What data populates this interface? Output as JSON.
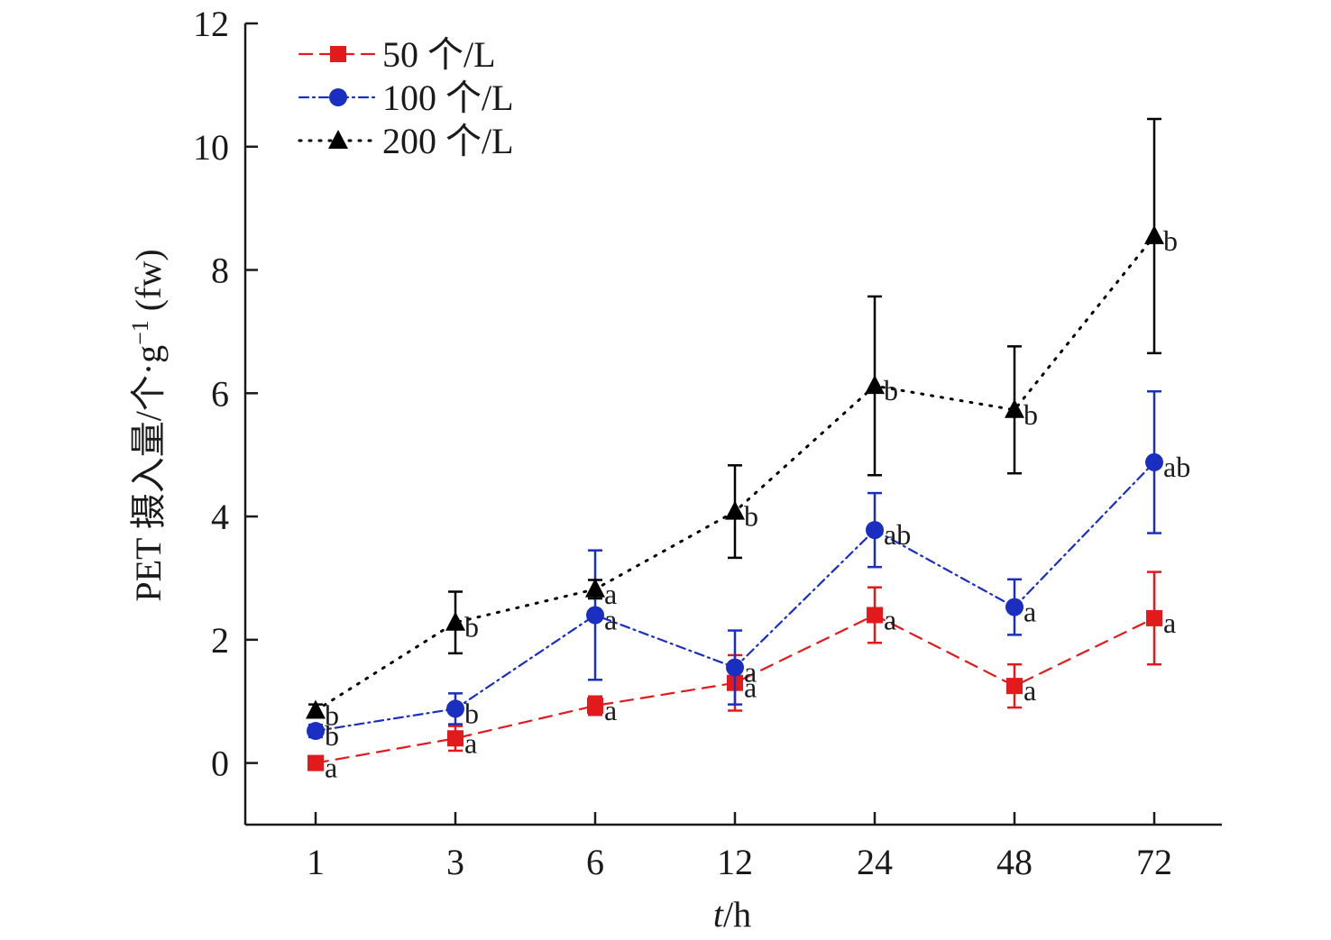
{
  "chart_data": {
    "type": "line",
    "title": "",
    "xlabel_italic": "t",
    "xlabel_rest": "/h",
    "ylabel": "PET 摄入量/个·g",
    "ylabel_sup": "−1",
    "ylabel_suffix": " (fw)",
    "x_is_categorical": true,
    "categories": [
      "1",
      "3",
      "6",
      "12",
      "24",
      "48",
      "72"
    ],
    "ylim": [
      -1,
      12
    ],
    "yticks": [
      0,
      2,
      4,
      6,
      8,
      10,
      12
    ],
    "yticks_labels": [
      "0",
      "2",
      "4",
      "6",
      "8",
      "10",
      "12"
    ],
    "grid": false,
    "legend_position": "top-left",
    "series": [
      {
        "name": "50 个/L",
        "color": "#e31a1c",
        "marker": "square",
        "line_style": "dashed",
        "values": [
          0.0,
          0.4,
          0.93,
          1.3,
          2.4,
          1.25,
          2.35
        ],
        "errors": [
          0.05,
          0.2,
          0.15,
          0.45,
          0.45,
          0.35,
          0.75
        ],
        "sig": [
          "a",
          "a",
          "a",
          "a",
          "a",
          "a",
          "a"
        ]
      },
      {
        "name": "100 个/L",
        "color": "#1a2fc2",
        "marker": "circle",
        "line_style": "dash-dot",
        "values": [
          0.52,
          0.88,
          2.4,
          1.55,
          3.78,
          2.53,
          4.88
        ],
        "errors": [
          0.1,
          0.25,
          1.05,
          0.6,
          0.6,
          0.45,
          1.15
        ],
        "sig": [
          "b",
          "b",
          "a",
          "a",
          "ab",
          "a",
          "ab"
        ]
      },
      {
        "name": "200 个/L",
        "color": "#000000",
        "marker": "triangle",
        "line_style": "dotted",
        "values": [
          0.85,
          2.28,
          2.82,
          4.08,
          6.12,
          5.73,
          8.55
        ],
        "errors": [
          0.1,
          0.5,
          0.15,
          0.75,
          1.45,
          1.03,
          1.9
        ],
        "sig": [
          "b",
          "b",
          "a",
          "b",
          "b",
          "b",
          "b"
        ]
      }
    ]
  }
}
